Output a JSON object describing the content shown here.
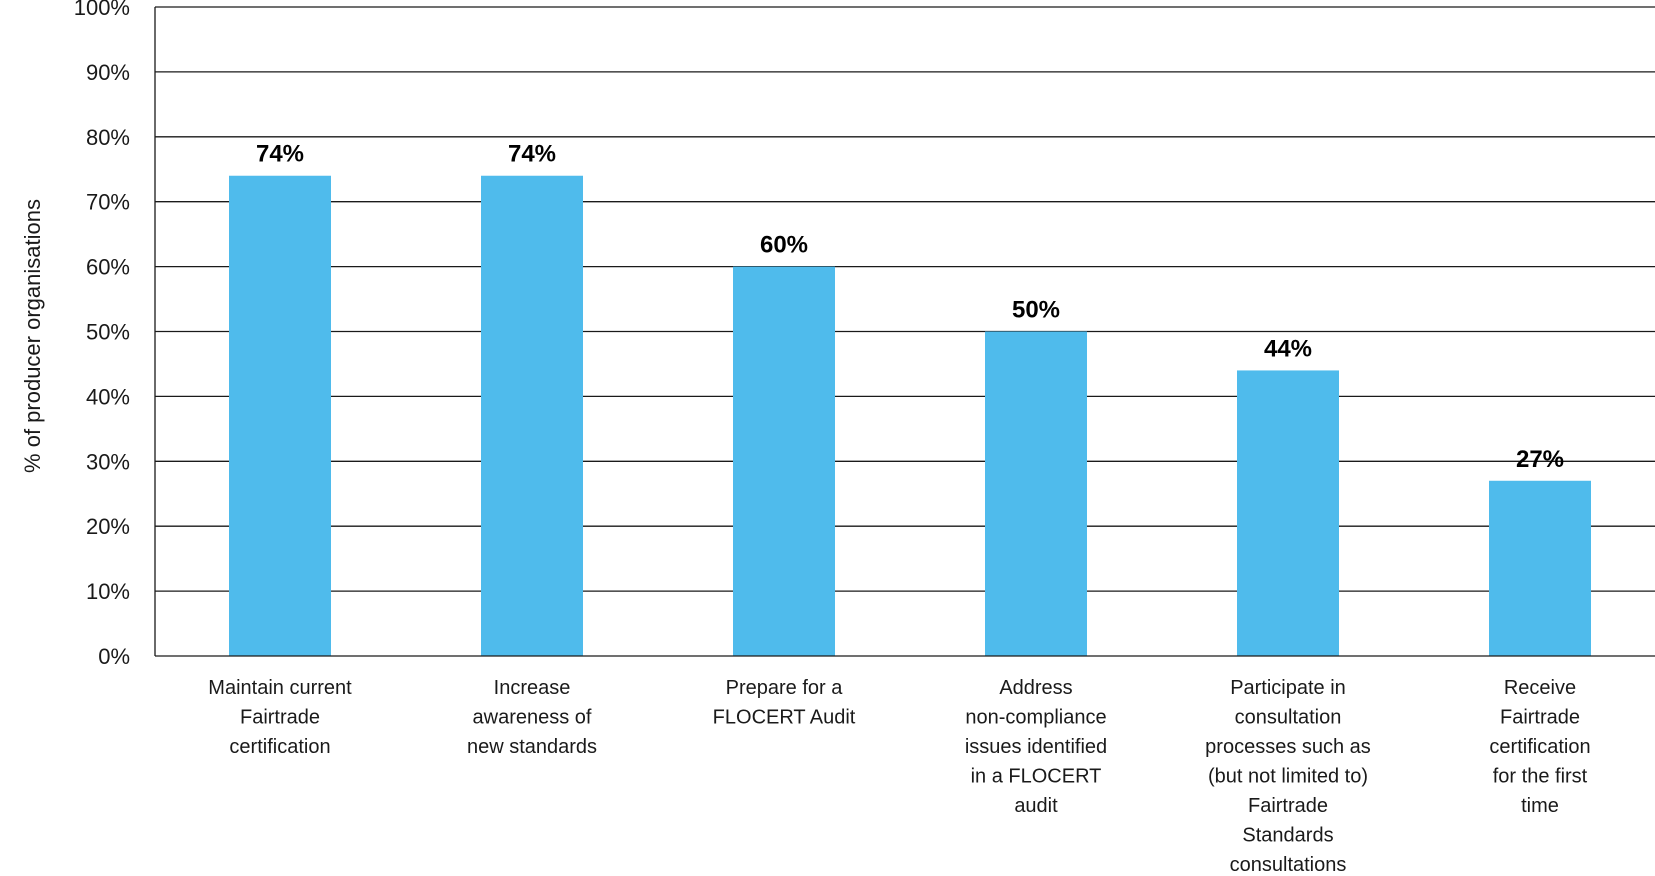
{
  "chart_data": {
    "type": "bar",
    "ylabel": "% of producer organisations",
    "ylim": [
      0,
      100
    ],
    "y_ticks": [
      "0%",
      "10%",
      "20%",
      "30%",
      "40%",
      "50%",
      "60%",
      "70%",
      "80%",
      "90%",
      "100%"
    ],
    "grid": true,
    "bar_color": "#4fbbec",
    "categories": [
      [
        "Maintain current",
        "Fairtrade",
        "certification"
      ],
      [
        "Increase",
        "awareness of",
        "new standards"
      ],
      [
        "Prepare for a",
        "FLOCERT Audit"
      ],
      [
        "Address",
        "non-compliance",
        "issues identified",
        "in a FLOCERT",
        "audit"
      ],
      [
        "Participate in",
        "consultation",
        "processes such as",
        "(but not limited to)",
        "Fairtrade",
        "Standards",
        "consultations"
      ],
      [
        "Receive",
        "Fairtrade",
        "certification",
        "for the first",
        "time"
      ]
    ],
    "values": [
      74,
      74,
      60,
      50,
      44,
      27
    ],
    "value_labels": [
      "74%",
      "74%",
      "60%",
      "50%",
      "44%",
      "27%"
    ]
  }
}
